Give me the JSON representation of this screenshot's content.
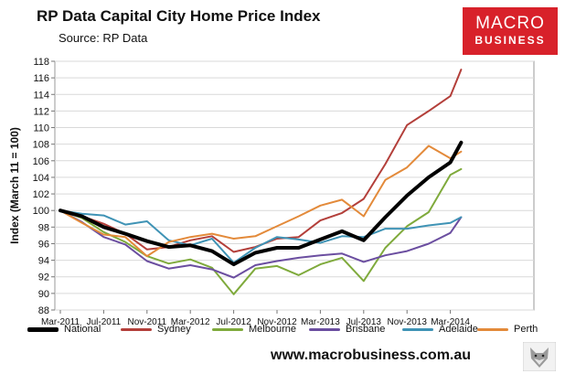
{
  "header": {
    "title": "RP Data Capital City Home Price Index",
    "subtitle": "Source: RP Data"
  },
  "logo": {
    "line1": "MACRO",
    "line2": "BUSINESS",
    "color": "#d8212a"
  },
  "footer": {
    "url": "www.macrobusiness.com.au"
  },
  "chart_data": {
    "type": "line",
    "title": "RP Data Capital City Home Price Index",
    "subtitle": "Source: RP Data",
    "ylabel": "Index (March 11 = 100)",
    "xlabel": "",
    "ylim": [
      88,
      118
    ],
    "yticks": [
      88,
      90,
      92,
      94,
      96,
      98,
      100,
      102,
      104,
      106,
      108,
      110,
      112,
      114,
      116,
      118
    ],
    "xtick_labels": [
      "Mar-2011",
      "Jul-2011",
      "Nov-2011",
      "Mar-2012",
      "Jul-2012",
      "Nov-2012",
      "Mar-2013",
      "Jul-2013",
      "Nov-2013",
      "Mar-2014"
    ],
    "x": [
      "Mar-2011",
      "May-2011",
      "Jul-2011",
      "Sep-2011",
      "Nov-2011",
      "Jan-2012",
      "Mar-2012",
      "May-2012",
      "Jul-2012",
      "Sep-2012",
      "Nov-2012",
      "Jan-2013",
      "Mar-2013",
      "May-2013",
      "Jul-2013",
      "Sep-2013",
      "Nov-2013",
      "Jan-2014",
      "Mar-2014",
      "Apr-2014"
    ],
    "grid": true,
    "legend_position": "bottom",
    "series": [
      {
        "name": "National",
        "color": "#000000",
        "width": 4,
        "values": [
          100,
          99.3,
          98,
          97.2,
          96.3,
          95.6,
          95.8,
          95.1,
          93.5,
          94.9,
          95.5,
          95.5,
          96.5,
          97.5,
          96.4,
          99.2,
          101.8,
          104,
          105.8,
          108.2
        ]
      },
      {
        "name": "Sydney",
        "color": "#b33f3a",
        "width": 2,
        "values": [
          100,
          99.3,
          98.4,
          97.2,
          95.3,
          95.6,
          96.4,
          96.9,
          95,
          95.6,
          96.6,
          96.8,
          98.8,
          99.7,
          101.4,
          105.6,
          110.3,
          112,
          113.8,
          117
        ]
      },
      {
        "name": "Melbourne",
        "color": "#7faa3c",
        "width": 2,
        "values": [
          100,
          99.1,
          97.4,
          96.2,
          94.5,
          93.6,
          94.1,
          93.1,
          89.9,
          93,
          93.3,
          92.2,
          93.5,
          94.3,
          91.5,
          95.5,
          98.1,
          99.8,
          104.3,
          105
        ]
      },
      {
        "name": "Brisbane",
        "color": "#6b4ea0",
        "width": 2,
        "values": [
          100,
          98.6,
          96.8,
          95.9,
          93.9,
          93,
          93.4,
          92.9,
          91.9,
          93.4,
          93.9,
          94.3,
          94.6,
          94.8,
          93.8,
          94.6,
          95.1,
          96,
          97.3,
          99.2
        ]
      },
      {
        "name": "Adelaide",
        "color": "#3f93b5",
        "width": 2,
        "values": [
          100,
          99.6,
          99.4,
          98.3,
          98.7,
          96.4,
          95.8,
          96.6,
          93.7,
          95.5,
          96.8,
          96.5,
          96.1,
          96.9,
          96.8,
          97.8,
          97.8,
          98.2,
          98.5,
          99.2
        ]
      },
      {
        "name": "Perth",
        "color": "#e38a3a",
        "width": 2,
        "values": [
          100,
          98.5,
          97.1,
          96.8,
          94.5,
          96.2,
          96.8,
          97.2,
          96.6,
          96.9,
          98.1,
          99.3,
          100.6,
          101.3,
          99.3,
          103.7,
          105.2,
          107.8,
          106.3,
          107.1
        ]
      }
    ]
  }
}
